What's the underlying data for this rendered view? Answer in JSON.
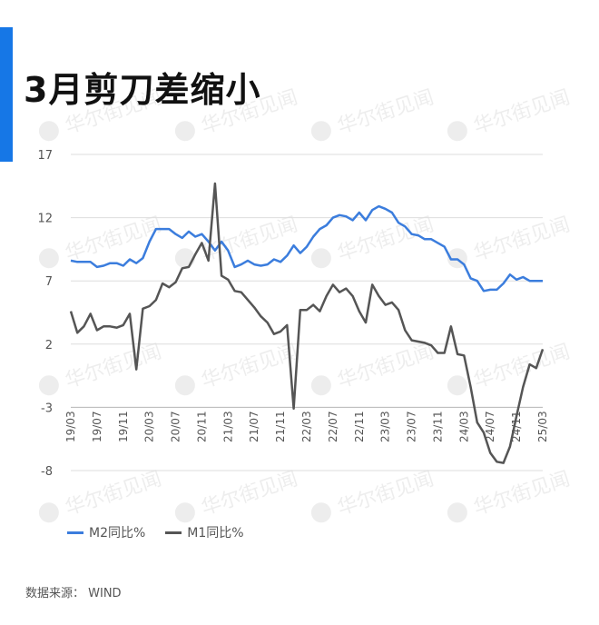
{
  "title": "3月剪刀差缩小",
  "source": "数据来源： WIND",
  "watermark": "华尔街见闻",
  "colors": {
    "accent": "#1677e6",
    "m2": "#3b7ddd",
    "m1": "#555555",
    "grid": "#dddddd",
    "axis": "#555555"
  },
  "chart_data": {
    "type": "line",
    "title": "",
    "xlabel": "",
    "ylabel": "",
    "ylim": [
      -8,
      17
    ],
    "yticks": [
      17,
      12,
      7,
      2,
      -3,
      -8
    ],
    "x_axis_value": -3,
    "grid": true,
    "legend_position": "bottom-left",
    "x": [
      "19/03",
      "19/04",
      "19/05",
      "19/06",
      "19/07",
      "19/08",
      "19/09",
      "19/10",
      "19/11",
      "19/12",
      "20/01",
      "20/02",
      "20/03",
      "20/04",
      "20/05",
      "20/06",
      "20/07",
      "20/08",
      "20/09",
      "20/10",
      "20/11",
      "20/12",
      "21/01",
      "21/02",
      "21/03",
      "21/04",
      "21/05",
      "21/06",
      "21/07",
      "21/08",
      "21/09",
      "21/10",
      "21/11",
      "21/12",
      "22/01",
      "22/02",
      "22/03",
      "22/04",
      "22/05",
      "22/06",
      "22/07",
      "22/08",
      "22/09",
      "22/10",
      "22/11",
      "22/12",
      "23/01",
      "23/02",
      "23/03",
      "23/04",
      "23/05",
      "23/06",
      "23/07",
      "23/08",
      "23/09",
      "23/10",
      "23/11",
      "23/12",
      "24/01",
      "24/02",
      "24/03",
      "24/04",
      "24/05",
      "24/06",
      "24/07",
      "24/08",
      "24/09",
      "24/10",
      "24/11",
      "24/12",
      "25/01",
      "25/02",
      "25/03"
    ],
    "xtick_labels": [
      "19/03",
      "19/07",
      "19/11",
      "20/03",
      "20/07",
      "20/11",
      "21/03",
      "21/07",
      "21/11",
      "22/03",
      "22/07",
      "22/11",
      "23/03",
      "23/07",
      "23/11",
      "24/03",
      "24/07",
      "24/11",
      "25/03"
    ],
    "series": [
      {
        "name": "M2同比%",
        "values": [
          8.6,
          8.5,
          8.5,
          8.5,
          8.1,
          8.2,
          8.4,
          8.4,
          8.2,
          8.7,
          8.4,
          8.8,
          10.1,
          11.1,
          11.1,
          11.1,
          10.7,
          10.4,
          10.9,
          10.5,
          10.7,
          10.1,
          9.4,
          10.1,
          9.4,
          8.1,
          8.3,
          8.6,
          8.3,
          8.2,
          8.3,
          8.7,
          8.5,
          9.0,
          9.8,
          9.2,
          9.7,
          10.5,
          11.1,
          11.4,
          12.0,
          12.2,
          12.1,
          11.8,
          12.4,
          11.8,
          12.6,
          12.9,
          12.7,
          12.4,
          11.6,
          11.3,
          10.7,
          10.6,
          10.3,
          10.3,
          10.0,
          9.7,
          8.7,
          8.7,
          8.3,
          7.2,
          7.0,
          6.2,
          6.3,
          6.3,
          6.8,
          7.5,
          7.1,
          7.3,
          7.0,
          7.0,
          7.0
        ]
      },
      {
        "name": "M1同比%",
        "values": [
          4.6,
          2.9,
          3.4,
          4.4,
          3.1,
          3.4,
          3.4,
          3.3,
          3.5,
          4.4,
          0.0,
          4.8,
          5.0,
          5.5,
          6.8,
          6.5,
          6.9,
          8.0,
          8.1,
          9.1,
          10.0,
          8.6,
          14.7,
          7.4,
          7.1,
          6.2,
          6.1,
          5.5,
          4.9,
          4.2,
          3.7,
          2.8,
          3.0,
          3.5,
          -3.1,
          4.7,
          4.7,
          5.1,
          4.6,
          5.8,
          6.7,
          6.1,
          6.4,
          5.8,
          4.6,
          3.7,
          6.7,
          5.8,
          5.1,
          5.3,
          4.7,
          3.1,
          2.3,
          2.2,
          2.1,
          1.9,
          1.3,
          1.3,
          3.4,
          1.2,
          1.1,
          -1.4,
          -4.2,
          -5.0,
          -6.6,
          -7.3,
          -7.4,
          -6.1,
          -3.7,
          -1.4,
          0.4,
          0.1,
          1.6
        ]
      }
    ]
  }
}
